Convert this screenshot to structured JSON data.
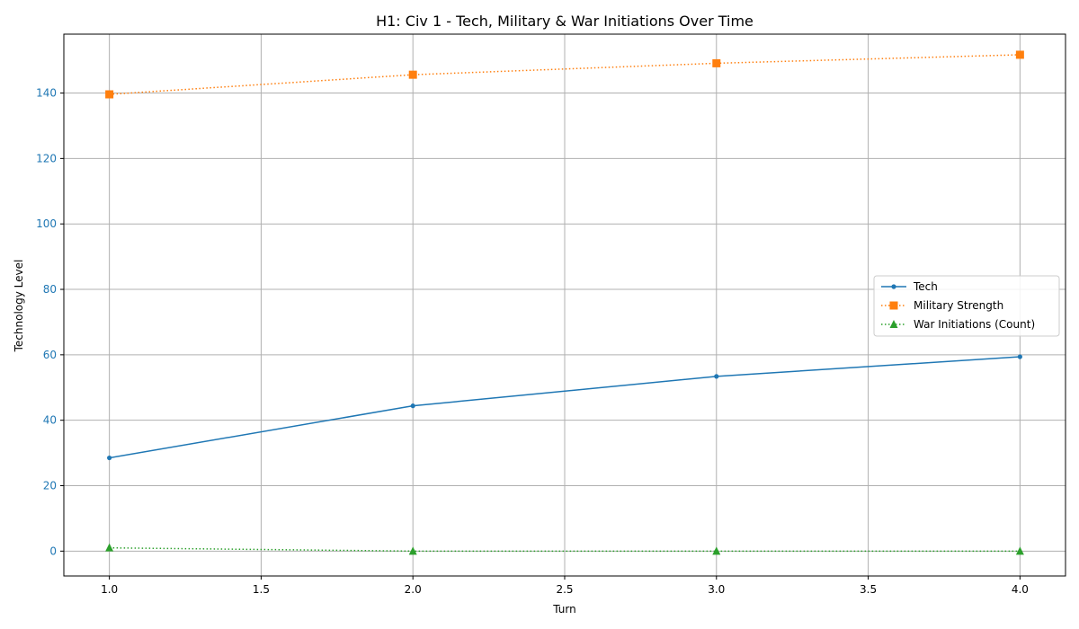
{
  "chart_data": {
    "type": "line",
    "title": "H1: Civ 1 - Tech, Military & War Initiations Over Time",
    "xlabel": "Turn",
    "ylabel": "Technology Level",
    "xlim": [
      0.85,
      4.15
    ],
    "ylim": [
      -7.6,
      158
    ],
    "xticks": [
      1.0,
      1.5,
      2.0,
      2.5,
      3.0,
      3.5,
      4.0
    ],
    "xtick_labels": [
      "1.0",
      "1.5",
      "2.0",
      "2.5",
      "3.0",
      "3.5",
      "4.0"
    ],
    "yticks": [
      0,
      20,
      40,
      60,
      80,
      100,
      120,
      140
    ],
    "ytick_labels": [
      "0",
      "20",
      "40",
      "60",
      "80",
      "100",
      "120",
      "140"
    ],
    "grid": true,
    "legend_position": "center-right",
    "series": [
      {
        "name": "Tech",
        "x": [
          1,
          2,
          3,
          4
        ],
        "y": [
          28.5,
          44.4,
          53.4,
          59.4
        ],
        "color": "#1f77b4",
        "line_style": "solid",
        "marker": "circle"
      },
      {
        "name": "Military Strength",
        "x": [
          1,
          2,
          3,
          4
        ],
        "y": [
          139.6,
          145.6,
          149.1,
          151.7
        ],
        "color": "#ff7f0e",
        "line_style": "dotted",
        "marker": "square"
      },
      {
        "name": "War Initiations (Count)",
        "x": [
          1,
          2,
          3,
          4
        ],
        "y": [
          1,
          0,
          0,
          0
        ],
        "color": "#2ca02c",
        "line_style": "dotted",
        "marker": "triangle"
      }
    ]
  }
}
